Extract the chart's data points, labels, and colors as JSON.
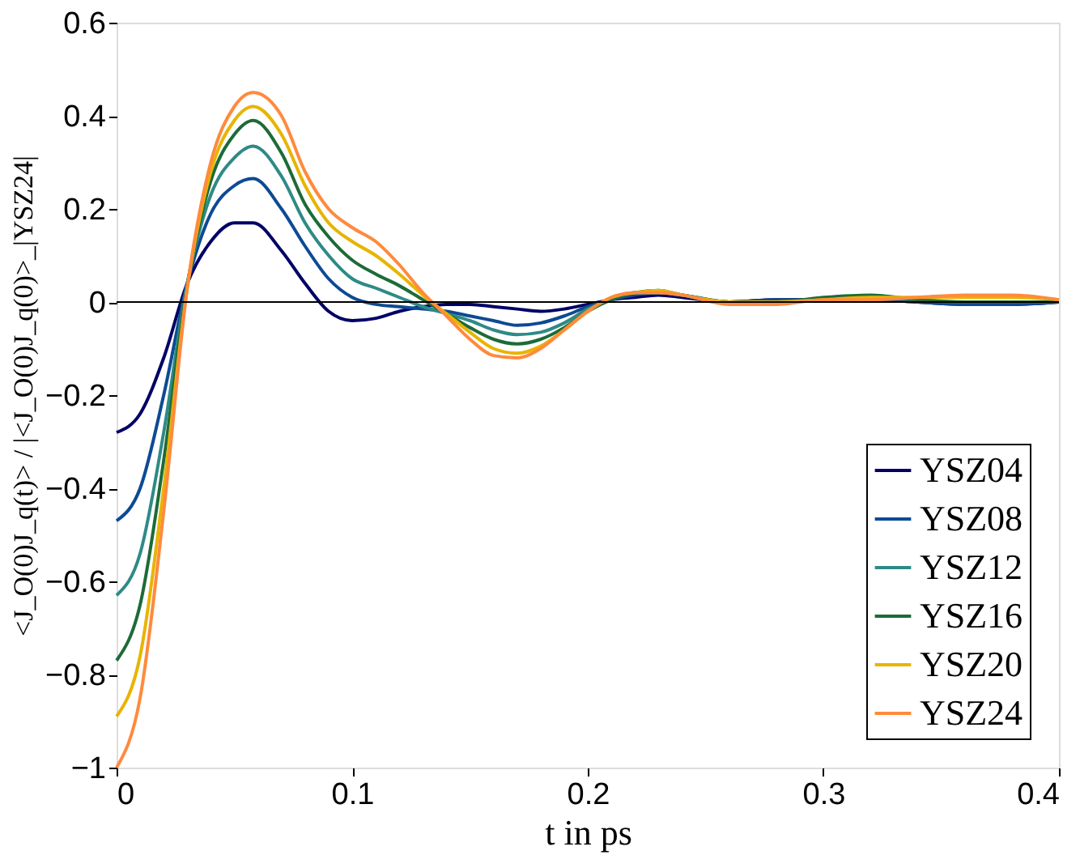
{
  "chart_data": {
    "type": "line",
    "xlabel": "t in ps",
    "ylabel": "<J_O(0)J_q(t)> / |<J_O(0)J_q(0)>_|YSZ24|",
    "x": [
      0,
      0.01,
      0.02,
      0.03,
      0.04,
      0.05,
      0.058,
      0.07,
      0.08,
      0.09,
      0.1,
      0.11,
      0.12,
      0.13,
      0.14,
      0.15,
      0.16,
      0.17,
      0.18,
      0.19,
      0.2,
      0.21,
      0.22,
      0.23,
      0.24,
      0.26,
      0.28,
      0.3,
      0.32,
      0.34,
      0.36,
      0.38,
      0.4
    ],
    "series": [
      {
        "name": "YSZ04",
        "color": "#000066",
        "values": [
          -0.28,
          -0.24,
          -0.12,
          0.04,
          0.13,
          0.17,
          0.17,
          0.11,
          0.04,
          -0.02,
          -0.04,
          -0.035,
          -0.02,
          -0.01,
          -0.005,
          -0.005,
          -0.01,
          -0.015,
          -0.02,
          -0.015,
          -0.005,
          0.005,
          0.01,
          0.015,
          0.01,
          0.0,
          0.005,
          0.005,
          0.005,
          0.0,
          -0.005,
          -0.005,
          0.0
        ]
      },
      {
        "name": "YSZ08",
        "color": "#0d4a94",
        "values": [
          -0.47,
          -0.4,
          -0.2,
          0.04,
          0.19,
          0.25,
          0.265,
          0.2,
          0.12,
          0.05,
          0.01,
          -0.005,
          -0.01,
          -0.015,
          -0.02,
          -0.03,
          -0.04,
          -0.05,
          -0.045,
          -0.03,
          -0.01,
          0.005,
          0.015,
          0.02,
          0.015,
          0.0,
          0.005,
          0.005,
          0.005,
          0.0,
          -0.005,
          -0.005,
          0.0
        ]
      },
      {
        "name": "YSZ12",
        "color": "#2f8a86",
        "values": [
          -0.63,
          -0.54,
          -0.28,
          0.04,
          0.23,
          0.31,
          0.335,
          0.27,
          0.17,
          0.1,
          0.05,
          0.03,
          0.01,
          -0.01,
          -0.025,
          -0.04,
          -0.06,
          -0.07,
          -0.065,
          -0.045,
          -0.015,
          0.005,
          0.02,
          0.02,
          0.015,
          0.0,
          0.0,
          0.005,
          0.01,
          0.005,
          0.0,
          0.0,
          0.0
        ]
      },
      {
        "name": "YSZ16",
        "color": "#1d6b38",
        "values": [
          -0.77,
          -0.65,
          -0.34,
          0.035,
          0.26,
          0.36,
          0.39,
          0.32,
          0.21,
          0.14,
          0.09,
          0.06,
          0.035,
          0.005,
          -0.025,
          -0.055,
          -0.08,
          -0.09,
          -0.08,
          -0.055,
          -0.02,
          0.005,
          0.02,
          0.025,
          0.015,
          0.0,
          0.0,
          0.01,
          0.015,
          0.005,
          0.0,
          0.0,
          0.0
        ]
      },
      {
        "name": "YSZ20",
        "color": "#e8b400",
        "values": [
          -0.89,
          -0.76,
          -0.4,
          0.03,
          0.28,
          0.39,
          0.42,
          0.36,
          0.25,
          0.17,
          0.13,
          0.1,
          0.06,
          0.015,
          -0.025,
          -0.065,
          -0.1,
          -0.11,
          -0.095,
          -0.06,
          -0.02,
          0.01,
          0.02,
          0.025,
          0.015,
          0.0,
          0.0,
          0.005,
          0.01,
          0.01,
          0.01,
          0.01,
          0.005
        ]
      },
      {
        "name": "YSZ24",
        "color": "#ff8a3d",
        "values": [
          -1,
          -0.85,
          -0.45,
          0.03,
          0.3,
          0.42,
          0.45,
          0.4,
          0.28,
          0.2,
          0.16,
          0.13,
          0.08,
          0.02,
          -0.03,
          -0.08,
          -0.115,
          -0.12,
          -0.1,
          -0.06,
          -0.02,
          0.01,
          0.02,
          0.02,
          0.015,
          -0.005,
          -0.005,
          0.005,
          0.005,
          0.01,
          0.015,
          0.015,
          0.005
        ]
      }
    ],
    "xlim": [
      0,
      0.4
    ],
    "xticks": [
      0,
      0.1,
      0.2,
      0.3,
      0.4
    ],
    "ylim": [
      -1,
      0.6
    ],
    "yticks": [
      -1,
      -0.8,
      -0.6,
      -0.4,
      -0.2,
      0,
      0.2,
      0.4,
      0.6
    ],
    "ref_lines": [
      {
        "axis": "y",
        "value": 0,
        "color": "#000000"
      }
    ],
    "legend": "bottom right",
    "grid": false,
    "marker": "none",
    "line_style": "solid"
  }
}
